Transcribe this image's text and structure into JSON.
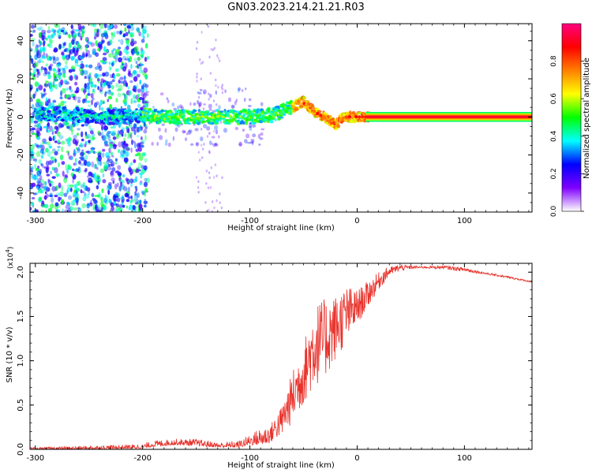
{
  "figure": {
    "title": "GN03.2023.214.21.21.R03"
  },
  "chart_data": [
    {
      "type": "heatmap",
      "xlabel": "Height of straight line (km)",
      "ylabel": "Frequency (Hz)",
      "xlim": [
        -305,
        163
      ],
      "ylim": [
        -50,
        49
      ],
      "x_ticks": [
        -300,
        -200,
        -100,
        0,
        100
      ],
      "x_tick_labels": [
        "-300",
        "-200",
        "-100",
        "0",
        "100"
      ],
      "y_ticks": [
        -40,
        -20,
        0,
        20,
        40
      ],
      "y_tick_labels": [
        "-40",
        "-20",
        "0",
        "20",
        "40"
      ],
      "colorbar": {
        "label": "Normalized spectral amplitude",
        "range": [
          0,
          1
        ],
        "ticks": [
          0.0,
          0.2,
          0.4,
          0.6,
          0.8
        ],
        "tick_labels": [
          "0.0",
          "0.2",
          "0.4",
          "0.6",
          "0.8"
        ],
        "colors": [
          "#ffffff",
          "#7f00ff",
          "#0000ff",
          "#00ffff",
          "#00ff00",
          "#ffff00",
          "#ff8000",
          "#ff0000",
          "#ff0080"
        ]
      },
      "ridge": {
        "x": [
          -300,
          -280,
          -260,
          -240,
          -220,
          -200,
          -180,
          -160,
          -140,
          -120,
          -100,
          -80,
          -70,
          -60,
          -55,
          -50,
          -45,
          -40,
          -35,
          -30,
          -25,
          -20,
          -15,
          -10,
          -5,
          0,
          10,
          160
        ],
        "freq": [
          1,
          2,
          1,
          0,
          0,
          1,
          0,
          0,
          0,
          0,
          0,
          1,
          3,
          5,
          7,
          8,
          5,
          3,
          1,
          0,
          -2,
          -4,
          -1,
          0,
          0,
          0,
          0,
          0
        ]
      },
      "grid": false
    },
    {
      "type": "line",
      "xlabel": "Height of straight line (km)",
      "ylabel": "SNR (10 * v/v)",
      "y_multiplier_label": "(x10",
      "y_multiplier_exp": "4",
      "y_multiplier_close": ")",
      "xlim": [
        -305,
        163
      ],
      "ylim": [
        0,
        2.1
      ],
      "x_ticks": [
        -300,
        -200,
        -100,
        0,
        100
      ],
      "x_tick_labels": [
        "-300",
        "-200",
        "-100",
        "0",
        "100"
      ],
      "y_ticks": [
        0.0,
        0.5,
        1.0,
        1.5,
        2.0
      ],
      "y_tick_labels": [
        "0.0",
        "0.5",
        "1.0",
        "1.5",
        "2.0"
      ],
      "series": [
        {
          "color": "#e8322b",
          "envelope": {
            "x": [
              -305,
              -250,
              -200,
              -190,
              -170,
              -150,
              -130,
              -110,
              -100,
              -90,
              -80,
              -70,
              -60,
              -50,
              -40,
              -30,
              -20,
              -10,
              0,
              10,
              20,
              30,
              40,
              50,
              60,
              80,
              100,
              120,
              140,
              163
            ],
            "low": [
              0.0,
              0.0,
              0.01,
              0.03,
              0.05,
              0.04,
              0.02,
              0.02,
              0.05,
              0.05,
              0.08,
              0.15,
              0.3,
              0.5,
              0.7,
              0.8,
              1.0,
              1.2,
              1.4,
              1.6,
              1.8,
              1.95,
              2.0,
              2.03,
              2.04,
              2.03,
              2.0,
              1.97,
              1.93,
              1.88
            ],
            "high": [
              0.02,
              0.04,
              0.06,
              0.1,
              0.12,
              0.12,
              0.08,
              0.1,
              0.17,
              0.25,
              0.3,
              0.5,
              0.9,
              1.2,
              1.65,
              1.7,
              1.75,
              1.85,
              1.8,
              1.9,
              2.0,
              2.07,
              2.1,
              2.08,
              2.07,
              2.08,
              2.06,
              2.0,
              1.96,
              1.9
            ]
          }
        }
      ],
      "grid": false
    }
  ]
}
